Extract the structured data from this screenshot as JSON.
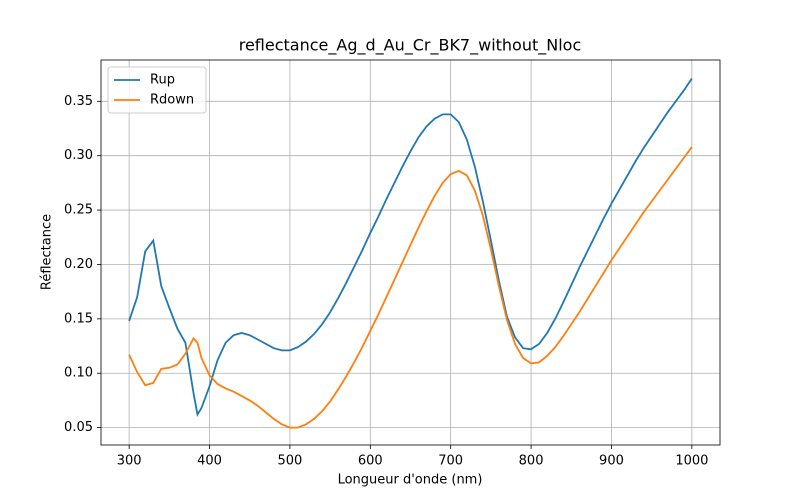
{
  "chart_data": {
    "type": "line",
    "title": "reflectance_Ag_d_Au_Cr_BK7_without_Nloc",
    "x_label": "Longueur d'onde (nm)",
    "y_label": "Réflectance",
    "x": [
      300,
      310,
      320,
      330,
      340,
      350,
      360,
      370,
      380,
      385,
      390,
      400,
      410,
      420,
      430,
      440,
      450,
      460,
      470,
      480,
      490,
      500,
      510,
      520,
      530,
      540,
      550,
      560,
      570,
      580,
      590,
      600,
      610,
      620,
      630,
      640,
      650,
      660,
      670,
      680,
      690,
      700,
      710,
      720,
      730,
      740,
      750,
      760,
      770,
      780,
      790,
      800,
      810,
      820,
      830,
      840,
      850,
      860,
      870,
      880,
      890,
      900,
      910,
      920,
      930,
      940,
      950,
      960,
      970,
      980,
      990,
      1000
    ],
    "series": [
      {
        "name": "Rup",
        "color": "#1f77b4",
        "values": [
          0.148,
          0.17,
          0.212,
          0.222,
          0.18,
          0.16,
          0.141,
          0.128,
          0.082,
          0.062,
          0.068,
          0.088,
          0.112,
          0.128,
          0.135,
          0.137,
          0.135,
          0.131,
          0.127,
          0.123,
          0.121,
          0.121,
          0.124,
          0.129,
          0.136,
          0.145,
          0.156,
          0.169,
          0.183,
          0.198,
          0.213,
          0.229,
          0.244,
          0.26,
          0.275,
          0.29,
          0.304,
          0.317,
          0.327,
          0.334,
          0.338,
          0.338,
          0.331,
          0.315,
          0.29,
          0.258,
          0.222,
          0.185,
          0.152,
          0.133,
          0.123,
          0.122,
          0.127,
          0.137,
          0.15,
          0.165,
          0.181,
          0.197,
          0.212,
          0.227,
          0.242,
          0.256,
          0.269,
          0.282,
          0.295,
          0.307,
          0.318,
          0.329,
          0.34,
          0.35,
          0.36,
          0.371
        ]
      },
      {
        "name": "Rdown",
        "color": "#ff7f0e",
        "values": [
          0.117,
          0.101,
          0.089,
          0.091,
          0.104,
          0.105,
          0.108,
          0.118,
          0.132,
          0.128,
          0.114,
          0.098,
          0.09,
          0.086,
          0.083,
          0.079,
          0.075,
          0.07,
          0.064,
          0.058,
          0.053,
          0.05,
          0.05,
          0.053,
          0.058,
          0.065,
          0.074,
          0.085,
          0.097,
          0.11,
          0.124,
          0.139,
          0.154,
          0.17,
          0.186,
          0.202,
          0.218,
          0.234,
          0.249,
          0.263,
          0.275,
          0.283,
          0.286,
          0.282,
          0.268,
          0.245,
          0.214,
          0.18,
          0.149,
          0.127,
          0.114,
          0.109,
          0.11,
          0.116,
          0.124,
          0.134,
          0.145,
          0.156,
          0.168,
          0.18,
          0.192,
          0.204,
          0.215,
          0.226,
          0.237,
          0.248,
          0.258,
          0.268,
          0.278,
          0.288,
          0.298,
          0.308
        ]
      }
    ],
    "xlim": [
      265,
      1035
    ],
    "ylim": [
      0.034,
      0.388
    ],
    "xticks": [
      300,
      400,
      500,
      600,
      700,
      800,
      900,
      1000
    ],
    "yticks": [
      0.05,
      {
        "value": 0.1,
        "label": "0.10"
      },
      0.15,
      {
        "value": 0.2,
        "label": "0.20"
      },
      0.25,
      {
        "value": 0.3,
        "label": "0.30"
      },
      0.35
    ],
    "grid": true,
    "legend": "upper-left"
  }
}
